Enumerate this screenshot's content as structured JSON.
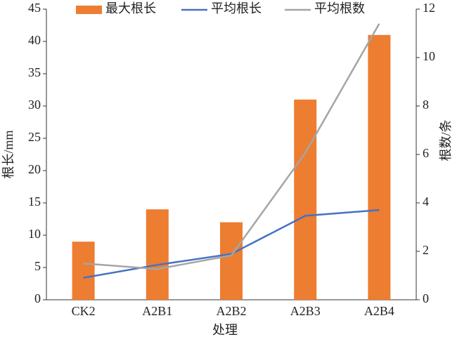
{
  "chart_data": {
    "type": "bar",
    "categories": [
      "CK2",
      "A2B1",
      "A2B2",
      "A2B3",
      "A2B4"
    ],
    "series": [
      {
        "name": "最大根长",
        "type": "bar",
        "color": "#ed7d31",
        "values": [
          9,
          14,
          12,
          31,
          41
        ]
      },
      {
        "name": "平均根长",
        "type": "line",
        "color": "#4472c4",
        "values": [
          3.4,
          5.4,
          7.1,
          13,
          13.9
        ]
      },
      {
        "name": "平均根数",
        "type": "line",
        "axis": "y2",
        "color": "#a5a5a5",
        "values": [
          1.5,
          1.27,
          1.83,
          6.06,
          11.4
        ]
      }
    ],
    "xlabel": "处理",
    "ylabel": "根长/mm",
    "y2label": "根数/条",
    "ylim": [
      0,
      45
    ],
    "yticks": [
      0,
      5,
      10,
      15,
      20,
      25,
      30,
      35,
      40,
      45
    ],
    "y2lim": [
      0,
      12
    ],
    "y2ticks": [
      0,
      2,
      4,
      6,
      8,
      10,
      12
    ],
    "legend": "top"
  }
}
